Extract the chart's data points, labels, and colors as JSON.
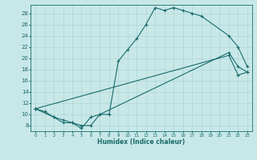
{
  "xlabel": "Humidex (Indice chaleur)",
  "ylabel": "",
  "bg_color": "#c8e8e8",
  "line_color": "#1a6b6b",
  "grid_color": "#a8d0d0",
  "xlim": [
    -0.5,
    23.5
  ],
  "ylim": [
    7,
    29.5
  ],
  "xticks": [
    0,
    1,
    2,
    3,
    4,
    5,
    6,
    7,
    8,
    9,
    10,
    11,
    12,
    13,
    14,
    15,
    16,
    17,
    18,
    19,
    20,
    21,
    22,
    23
  ],
  "yticks": [
    8,
    10,
    12,
    14,
    16,
    18,
    20,
    22,
    24,
    26,
    28
  ],
  "line1": {
    "x": [
      0,
      1,
      2,
      3,
      4,
      5,
      6,
      7,
      8,
      9,
      10,
      11,
      12,
      13,
      14,
      15,
      16,
      17,
      18,
      21,
      22,
      23
    ],
    "y": [
      11,
      10.5,
      9.5,
      9,
      8.5,
      8,
      8,
      10,
      10,
      19.5,
      21.5,
      23.5,
      26,
      29,
      28.5,
      29,
      28.5,
      28,
      27.5,
      24,
      22,
      18.5
    ]
  },
  "line2": {
    "x": [
      0,
      2,
      3,
      4,
      5,
      6,
      7,
      21,
      22,
      23
    ],
    "y": [
      11,
      9.5,
      8.5,
      8.5,
      7.5,
      9.5,
      10,
      21,
      18.5,
      17.5
    ]
  },
  "line3": {
    "x": [
      0,
      21,
      22,
      23
    ],
    "y": [
      11,
      20.5,
      17,
      17.5
    ]
  }
}
